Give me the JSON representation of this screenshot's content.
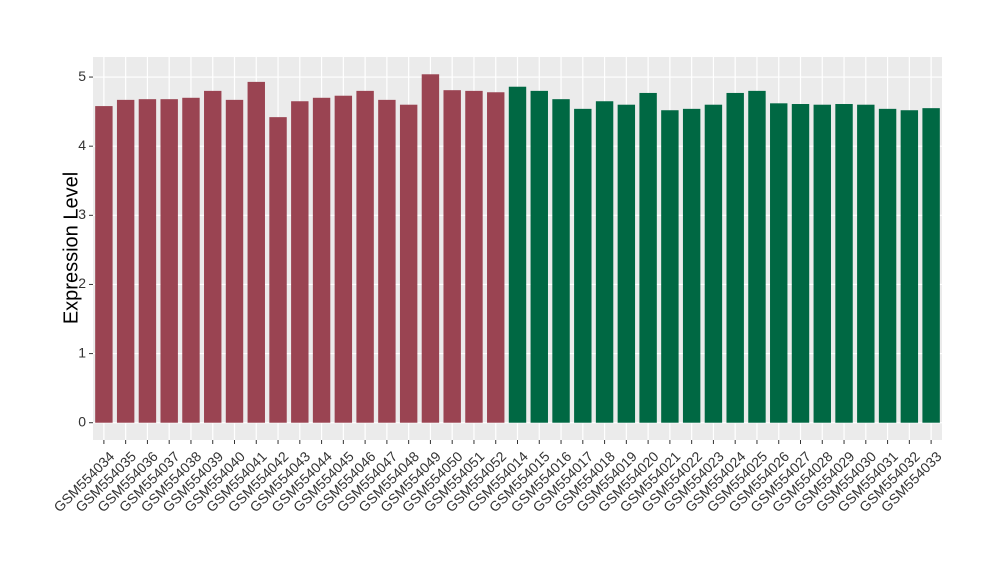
{
  "chart_data": {
    "type": "bar",
    "y_label": "Expression Level",
    "categories": [
      "GSM554034",
      "GSM554035",
      "GSM554036",
      "GSM554037",
      "GSM554038",
      "GSM554039",
      "GSM554040",
      "GSM554041",
      "GSM554042",
      "GSM554043",
      "GSM554044",
      "GSM554045",
      "GSM554046",
      "GSM554047",
      "GSM554048",
      "GSM554049",
      "GSM554050",
      "GSM554051",
      "GSM554052",
      "GSM554014",
      "GSM554015",
      "GSM554016",
      "GSM554017",
      "GSM554018",
      "GSM554019",
      "GSM554020",
      "GSM554021",
      "GSM554022",
      "GSM554023",
      "GSM554024",
      "GSM554025",
      "GSM554026",
      "GSM554027",
      "GSM554028",
      "GSM554029",
      "GSM554030",
      "GSM554031",
      "GSM554032",
      "GSM554033"
    ],
    "values": [
      4.58,
      4.67,
      4.68,
      4.68,
      4.7,
      4.8,
      4.67,
      4.93,
      4.42,
      4.65,
      4.7,
      4.73,
      4.8,
      4.67,
      4.6,
      5.04,
      4.81,
      4.8,
      4.78,
      4.86,
      4.8,
      4.68,
      4.54,
      4.65,
      4.6,
      4.77,
      4.52,
      4.54,
      4.6,
      4.77,
      4.8,
      4.62,
      4.61,
      4.6,
      4.61,
      4.6,
      4.54,
      4.52,
      4.55
    ],
    "colors": [
      "#9a4452",
      "#9a4452",
      "#9a4452",
      "#9a4452",
      "#9a4452",
      "#9a4452",
      "#9a4452",
      "#9a4452",
      "#9a4452",
      "#9a4452",
      "#9a4452",
      "#9a4452",
      "#9a4452",
      "#9a4452",
      "#9a4452",
      "#9a4452",
      "#9a4452",
      "#9a4452",
      "#9a4452",
      "#006843",
      "#006843",
      "#006843",
      "#006843",
      "#006843",
      "#006843",
      "#006843",
      "#006843",
      "#006843",
      "#006843",
      "#006843",
      "#006843",
      "#006843",
      "#006843",
      "#006843",
      "#006843",
      "#006843",
      "#006843",
      "#006843",
      "#006843"
    ],
    "ylim": [
      -0.25,
      5.29
    ],
    "yticks": [
      0,
      1,
      2,
      3,
      4,
      5
    ],
    "grid": true
  }
}
